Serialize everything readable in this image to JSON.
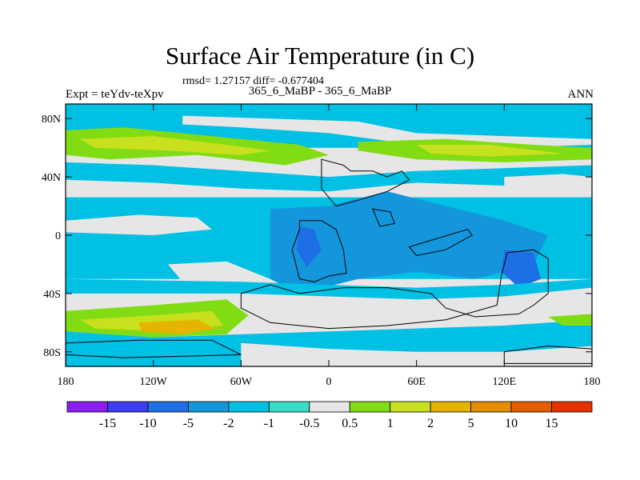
{
  "chart_data": {
    "type": "heatmap",
    "title": "Surface Air Temperature (in C)",
    "stats_text": "rmsd= 1.27157 diff= -0.677404",
    "subtitle": "365_6_MaBP - 365_6_MaBP",
    "left_label": "Expt = teYdv-teXpv",
    "right_label": "ANN",
    "xlim": [
      -180,
      180
    ],
    "ylim": [
      -90,
      90
    ],
    "x_ticks": [
      {
        "value": -180,
        "label": "180"
      },
      {
        "value": -120,
        "label": "120W"
      },
      {
        "value": -60,
        "label": "60W"
      },
      {
        "value": 0,
        "label": "0"
      },
      {
        "value": 60,
        "label": "60E"
      },
      {
        "value": 120,
        "label": "120E"
      },
      {
        "value": 180,
        "label": "180"
      }
    ],
    "y_ticks": [
      {
        "value": 80,
        "label": "80N"
      },
      {
        "value": 40,
        "label": "40N"
      },
      {
        "value": 0,
        "label": "0"
      },
      {
        "value": -40,
        "label": "40S"
      },
      {
        "value": -80,
        "label": "80S"
      }
    ],
    "colorbar": {
      "levels": [
        "-15",
        "-10",
        "-5",
        "-2",
        "-1",
        "-0.5",
        "0.5",
        "1",
        "2",
        "5",
        "10",
        "15"
      ],
      "colors": [
        "#8a1ef0",
        "#3c3cf0",
        "#1e6ee6",
        "#1496dc",
        "#00c0e4",
        "#38dcc8",
        "#e6e6e6",
        "#82dc14",
        "#c8e01e",
        "#e6b400",
        "#e68c00",
        "#e65c00",
        "#e63200"
      ]
    },
    "field_regions": [
      {
        "name": "north-polar-cyan",
        "level_index": 4,
        "points": [
          [
            -180,
            90
          ],
          [
            180,
            90
          ],
          [
            180,
            60
          ],
          [
            -180,
            60
          ]
        ]
      },
      {
        "name": "north-polar-white-band",
        "level_index": 6,
        "points": [
          [
            -100,
            82
          ],
          [
            -40,
            80
          ],
          [
            20,
            78
          ],
          [
            60,
            70
          ],
          [
            120,
            68
          ],
          [
            180,
            66
          ],
          [
            180,
            62
          ],
          [
            120,
            60
          ],
          [
            60,
            62
          ],
          [
            0,
            70
          ],
          [
            -60,
            74
          ],
          [
            -100,
            76
          ]
        ]
      },
      {
        "name": "north-midlat-green",
        "level_index": 7,
        "points": [
          [
            -180,
            72
          ],
          [
            -140,
            74
          ],
          [
            -80,
            68
          ],
          [
            -20,
            62
          ],
          [
            0,
            55
          ],
          [
            -30,
            48
          ],
          [
            -90,
            55
          ],
          [
            -150,
            52
          ],
          [
            -180,
            55
          ]
        ]
      },
      {
        "name": "north-midlat-yellow",
        "level_index": 8,
        "points": [
          [
            -170,
            66
          ],
          [
            -120,
            68
          ],
          [
            -70,
            62
          ],
          [
            -40,
            58
          ],
          [
            -60,
            55
          ],
          [
            -110,
            58
          ],
          [
            -160,
            60
          ]
        ]
      },
      {
        "name": "north-green-east",
        "level_index": 7,
        "points": [
          [
            20,
            64
          ],
          [
            80,
            66
          ],
          [
            140,
            62
          ],
          [
            180,
            60
          ],
          [
            180,
            52
          ],
          [
            120,
            50
          ],
          [
            60,
            52
          ],
          [
            20,
            58
          ]
        ]
      },
      {
        "name": "north-yellow-east",
        "level_index": 8,
        "points": [
          [
            60,
            62
          ],
          [
            110,
            62
          ],
          [
            160,
            56
          ],
          [
            110,
            54
          ],
          [
            70,
            56
          ]
        ]
      },
      {
        "name": "north-cyan-midlat",
        "level_index": 4,
        "points": [
          [
            -180,
            50
          ],
          [
            -120,
            48
          ],
          [
            -60,
            44
          ],
          [
            0,
            40
          ],
          [
            60,
            44
          ],
          [
            120,
            46
          ],
          [
            180,
            48
          ],
          [
            180,
            30
          ],
          [
            120,
            34
          ],
          [
            60,
            36
          ],
          [
            0,
            30
          ],
          [
            -60,
            32
          ],
          [
            -120,
            36
          ],
          [
            -180,
            38
          ]
        ]
      },
      {
        "name": "north-white-west",
        "level_index": 6,
        "points": [
          [
            -180,
            38
          ],
          [
            -130,
            36
          ],
          [
            -80,
            30
          ],
          [
            -60,
            22
          ],
          [
            -100,
            18
          ],
          [
            -150,
            24
          ],
          [
            -180,
            26
          ]
        ]
      },
      {
        "name": "north-white-east",
        "level_index": 6,
        "points": [
          [
            120,
            40
          ],
          [
            160,
            42
          ],
          [
            180,
            40
          ],
          [
            180,
            30
          ],
          [
            150,
            28
          ],
          [
            120,
            32
          ]
        ]
      },
      {
        "name": "tropics-cyan",
        "level_index": 4,
        "points": [
          [
            -180,
            26
          ],
          [
            180,
            26
          ],
          [
            180,
            -30
          ],
          [
            -180,
            -30
          ]
        ]
      },
      {
        "name": "tropics-white-west",
        "level_index": 6,
        "points": [
          [
            -180,
            10
          ],
          [
            -130,
            14
          ],
          [
            -90,
            12
          ],
          [
            -80,
            4
          ],
          [
            -120,
            0
          ],
          [
            -180,
            2
          ]
        ]
      },
      {
        "name": "tropics-white-southwest",
        "level_index": 6,
        "points": [
          [
            -110,
            -20
          ],
          [
            -70,
            -18
          ],
          [
            -40,
            -30
          ],
          [
            -70,
            -38
          ],
          [
            -100,
            -32
          ]
        ]
      },
      {
        "name": "tropics-blue-central",
        "level_index": 3,
        "points": [
          [
            -40,
            18
          ],
          [
            0,
            20
          ],
          [
            40,
            30
          ],
          [
            80,
            20
          ],
          [
            120,
            10
          ],
          [
            150,
            0
          ],
          [
            140,
            -20
          ],
          [
            100,
            -30
          ],
          [
            60,
            -25
          ],
          [
            20,
            -30
          ],
          [
            -20,
            -40
          ],
          [
            -40,
            -30
          ],
          [
            -40,
            0
          ]
        ]
      },
      {
        "name": "tropics-deep-blue",
        "level_index": 2,
        "points": [
          [
            -20,
            6
          ],
          [
            -10,
            4
          ],
          [
            -5,
            -10
          ],
          [
            -15,
            -22
          ],
          [
            -22,
            -10
          ]
        ]
      },
      {
        "name": "indian-deep-blue",
        "level_index": 2,
        "points": [
          [
            120,
            -10
          ],
          [
            140,
            -12
          ],
          [
            145,
            -30
          ],
          [
            130,
            -36
          ],
          [
            118,
            -25
          ]
        ]
      },
      {
        "name": "tropics-blue-east",
        "level_index": 3,
        "points": [
          [
            40,
            0
          ],
          [
            80,
            -10
          ],
          [
            100,
            -12
          ],
          [
            90,
            -20
          ],
          [
            50,
            -18
          ]
        ]
      },
      {
        "name": "south-white-band",
        "level_index": 6,
        "points": [
          [
            -80,
            -40
          ],
          [
            -20,
            -42
          ],
          [
            40,
            -45
          ],
          [
            100,
            -44
          ],
          [
            140,
            -40
          ],
          [
            180,
            -36
          ],
          [
            180,
            -50
          ],
          [
            120,
            -56
          ],
          [
            60,
            -60
          ],
          [
            0,
            -62
          ],
          [
            -60,
            -58
          ],
          [
            -80,
            -50
          ]
        ]
      },
      {
        "name": "south-cyan-band",
        "level_index": 4,
        "points": [
          [
            -180,
            -30
          ],
          [
            -60,
            -32
          ],
          [
            0,
            -34
          ],
          [
            60,
            -36
          ],
          [
            120,
            -34
          ],
          [
            180,
            -30
          ],
          [
            180,
            -36
          ],
          [
            120,
            -42
          ],
          [
            60,
            -44
          ],
          [
            0,
            -42
          ],
          [
            -60,
            -40
          ],
          [
            -180,
            -40
          ]
        ]
      },
      {
        "name": "south-green-west",
        "level_index": 7,
        "points": [
          [
            -180,
            -52
          ],
          [
            -120,
            -48
          ],
          [
            -70,
            -44
          ],
          [
            -55,
            -55
          ],
          [
            -70,
            -68
          ],
          [
            -120,
            -70
          ],
          [
            -180,
            -66
          ]
        ]
      },
      {
        "name": "south-yellow-west",
        "level_index": 8,
        "points": [
          [
            -170,
            -58
          ],
          [
            -120,
            -55
          ],
          [
            -80,
            -52
          ],
          [
            -72,
            -62
          ],
          [
            -110,
            -66
          ],
          [
            -160,
            -64
          ]
        ]
      },
      {
        "name": "south-orange-west",
        "level_index": 9,
        "points": [
          [
            -130,
            -60
          ],
          [
            -90,
            -58
          ],
          [
            -78,
            -64
          ],
          [
            -100,
            -68
          ],
          [
            -128,
            -66
          ]
        ]
      },
      {
        "name": "south-polar-cyan",
        "level_index": 4,
        "points": [
          [
            -180,
            -66
          ],
          [
            -120,
            -70
          ],
          [
            -60,
            -68
          ],
          [
            0,
            -66
          ],
          [
            60,
            -64
          ],
          [
            120,
            -62
          ],
          [
            180,
            -58
          ],
          [
            180,
            -90
          ],
          [
            -180,
            -90
          ]
        ]
      },
      {
        "name": "south-polar-white",
        "level_index": 6,
        "points": [
          [
            -60,
            -74
          ],
          [
            0,
            -78
          ],
          [
            60,
            -80
          ],
          [
            120,
            -80
          ],
          [
            180,
            -76
          ],
          [
            180,
            -90
          ],
          [
            -60,
            -90
          ]
        ]
      },
      {
        "name": "south-green-east",
        "level_index": 7,
        "points": [
          [
            150,
            -56
          ],
          [
            180,
            -54
          ],
          [
            180,
            -62
          ],
          [
            160,
            -62
          ]
        ]
      }
    ],
    "continent_outlines": [
      {
        "name": "north-landmass",
        "points": [
          [
            -5,
            52
          ],
          [
            10,
            48
          ],
          [
            15,
            44
          ],
          [
            30,
            44
          ],
          [
            40,
            40
          ],
          [
            50,
            44
          ],
          [
            55,
            38
          ],
          [
            40,
            30
          ],
          [
            20,
            24
          ],
          [
            5,
            20
          ],
          [
            -5,
            32
          ]
        ]
      },
      {
        "name": "central-landmass",
        "points": [
          [
            -20,
            10
          ],
          [
            -5,
            10
          ],
          [
            5,
            4
          ],
          [
            10,
            -10
          ],
          [
            12,
            -26
          ],
          [
            0,
            -28
          ],
          [
            -10,
            -32
          ],
          [
            -20,
            -30
          ],
          [
            -25,
            -10
          ],
          [
            -20,
            4
          ]
        ]
      },
      {
        "name": "south-american-landmass",
        "points": [
          [
            -60,
            -40
          ],
          [
            -40,
            -34
          ],
          [
            -20,
            -40
          ],
          [
            10,
            -36
          ],
          [
            40,
            -36
          ],
          [
            70,
            -40
          ],
          [
            80,
            -50
          ],
          [
            100,
            -56
          ],
          [
            130,
            -54
          ],
          [
            140,
            -48
          ],
          [
            150,
            -40
          ],
          [
            150,
            -16
          ],
          [
            140,
            -10
          ],
          [
            122,
            -12
          ],
          [
            118,
            -28
          ],
          [
            115,
            -48
          ],
          [
            80,
            -58
          ],
          [
            40,
            -62
          ],
          [
            0,
            -64
          ],
          [
            -40,
            -60
          ],
          [
            -60,
            -50
          ]
        ]
      },
      {
        "name": "antarctic-edge",
        "points": [
          [
            -180,
            -74
          ],
          [
            -130,
            -72
          ],
          [
            -80,
            -72
          ],
          [
            -60,
            -82
          ],
          [
            -140,
            -84
          ],
          [
            -180,
            -82
          ]
        ]
      },
      {
        "name": "antarctic-east",
        "points": [
          [
            120,
            -80
          ],
          [
            150,
            -76
          ],
          [
            180,
            -78
          ],
          [
            180,
            -88
          ],
          [
            120,
            -88
          ]
        ]
      },
      {
        "name": "island-east",
        "points": [
          [
            30,
            18
          ],
          [
            42,
            16
          ],
          [
            45,
            8
          ],
          [
            35,
            6
          ]
        ]
      },
      {
        "name": "island-eastern-arc",
        "points": [
          [
            55,
            -8
          ],
          [
            75,
            -2
          ],
          [
            95,
            4
          ],
          [
            98,
            0
          ],
          [
            80,
            -10
          ],
          [
            60,
            -14
          ]
        ]
      }
    ]
  }
}
